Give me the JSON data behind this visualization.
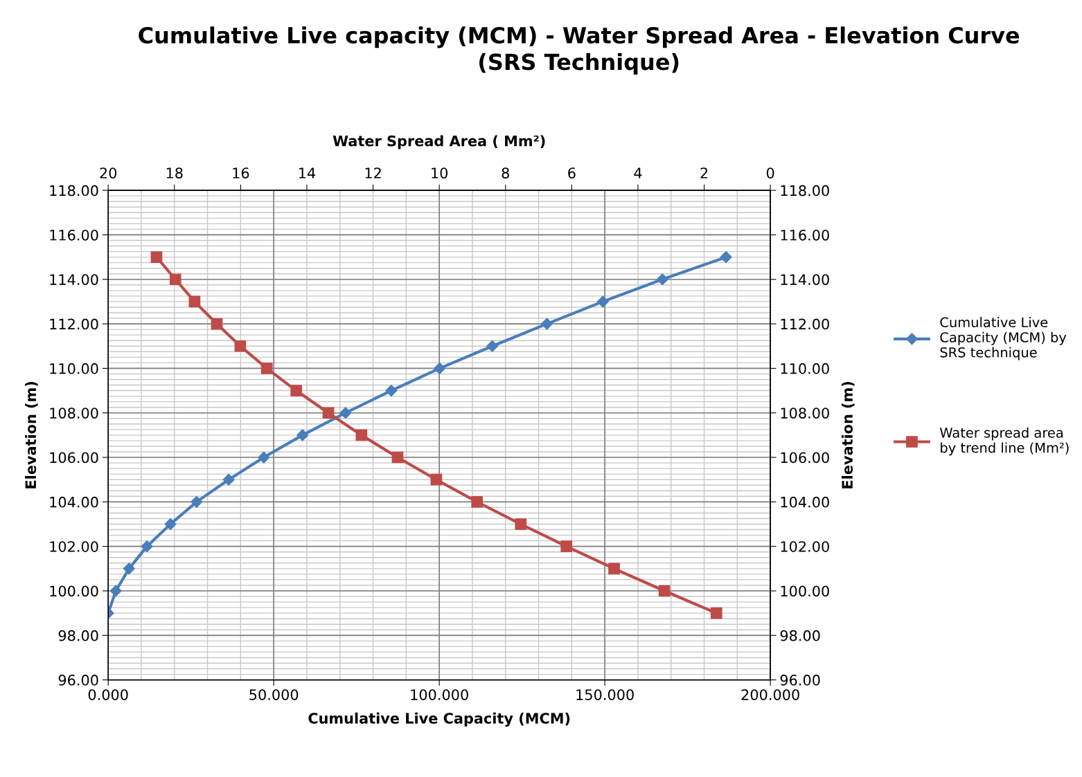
{
  "chart_data": {
    "type": "line",
    "title": "Cumulative Live capacity (MCM) - Water Spread Area - Elevation Curve (SRS Technique)",
    "xlabel": "Cumulative Live Capacity (MCM)",
    "x2label": "Water Spread Area ( Mm²)",
    "ylabel": "Elevation (m)",
    "y2label": "Elevation (m)",
    "series": [
      {
        "name": "Cumulative Live Capacity (MCM) by SRS technique",
        "color": "#4a7ebb",
        "marker": "diamond",
        "x": [
          0,
          2.3,
          6.3,
          11.7,
          18.8,
          26.7,
          36.4,
          47.0,
          58.7,
          71.7,
          85.5,
          100.1,
          116.0,
          132.5,
          149.4,
          167.4,
          186.6
        ],
        "values": [
          99,
          100,
          101,
          102,
          103,
          104,
          105,
          106,
          107,
          108,
          109,
          110,
          111,
          112,
          113,
          114,
          115
        ]
      },
      {
        "name": "Water spread area by trend line (Mm²)",
        "color": "#be4b48",
        "marker": "square",
        "axis": "x2",
        "x": [
          18.54,
          17.97,
          17.39,
          16.72,
          16.01,
          15.21,
          14.32,
          13.35,
          12.35,
          11.26,
          10.09,
          8.86,
          7.54,
          6.16,
          4.72,
          3.2,
          1.63
        ],
        "values": [
          115,
          114,
          113,
          112,
          111,
          110,
          109,
          108,
          107,
          106,
          105,
          104,
          103,
          102,
          101,
          100,
          99
        ]
      }
    ],
    "xlim": [
      0,
      200
    ],
    "xticks": [
      {
        "value": 0,
        "label": "0.000"
      },
      {
        "value": 50,
        "label": "50.000"
      },
      {
        "value": 100,
        "label": "100.000"
      },
      {
        "value": 150,
        "label": "150.000"
      },
      {
        "value": 200,
        "label": "200.000"
      }
    ],
    "x2lim": [
      20,
      0
    ],
    "x2ticks": [
      20,
      18,
      16,
      14,
      12,
      10,
      8,
      6,
      4,
      2,
      0
    ],
    "ylim": [
      96,
      118
    ],
    "yticks": [
      {
        "value": 96,
        "label": "96.00"
      },
      {
        "value": 98,
        "label": "98.00"
      },
      {
        "value": 100,
        "label": "100.00"
      },
      {
        "value": 102,
        "label": "102.00"
      },
      {
        "value": 104,
        "label": "104.00"
      },
      {
        "value": 106,
        "label": "106.00"
      },
      {
        "value": 108,
        "label": "108.00"
      },
      {
        "value": 110,
        "label": "110.00"
      },
      {
        "value": 112,
        "label": "112.00"
      },
      {
        "value": 114,
        "label": "114.00"
      },
      {
        "value": 116,
        "label": "116.00"
      },
      {
        "value": 118,
        "label": "118.00"
      }
    ],
    "y2lim": [
      96,
      118
    ],
    "y2ticks": [
      {
        "value": 96,
        "label": "96.00"
      },
      {
        "value": 98,
        "label": "98.00"
      },
      {
        "value": 100,
        "label": "100.00"
      },
      {
        "value": 102,
        "label": "102.00"
      },
      {
        "value": 104,
        "label": "104.00"
      },
      {
        "value": 106,
        "label": "106.00"
      },
      {
        "value": 108,
        "label": "108.00"
      },
      {
        "value": 110,
        "label": "110.00"
      },
      {
        "value": 112,
        "label": "112.00"
      },
      {
        "value": 114,
        "label": "114.00"
      },
      {
        "value": 116,
        "label": "116.00"
      },
      {
        "value": 118,
        "label": "118.00"
      }
    ],
    "grid": true,
    "legend": "right",
    "line_style": "solid"
  }
}
